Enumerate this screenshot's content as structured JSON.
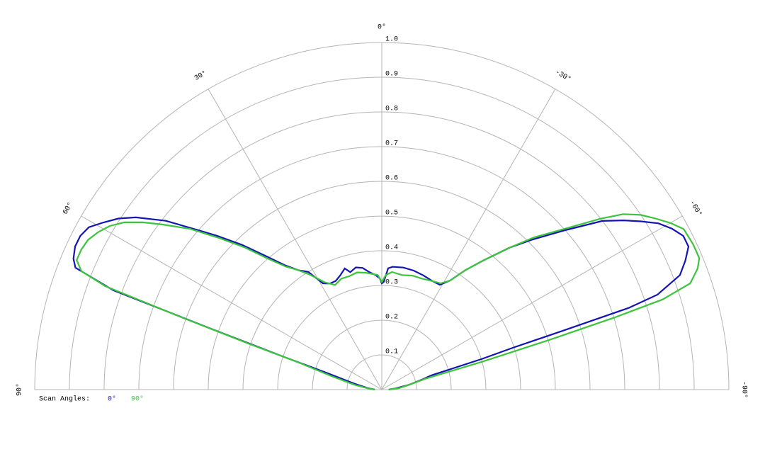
{
  "chart_data": {
    "type": "polar",
    "rlim": [
      0,
      1
    ],
    "rticks": [
      0.1,
      0.2,
      0.3,
      0.4,
      0.5,
      0.6,
      0.7,
      0.8,
      0.9,
      {
        "value": 1,
        "label": "1.0"
      }
    ],
    "thetalim": [
      -90,
      90
    ],
    "thetaticks": [
      {
        "value": 90,
        "label": "90°"
      },
      {
        "value": 60,
        "label": "60°"
      },
      {
        "value": 30,
        "label": "30°"
      },
      {
        "value": 0,
        "label": "0°"
      },
      {
        "value": -30,
        "label": "-30°"
      },
      {
        "value": -60,
        "label": "-60°"
      },
      {
        "value": -90,
        "label": "-90°"
      }
    ],
    "grid": true,
    "legend_title": "Scan Angles:",
    "series": [
      {
        "name": "0°",
        "color": "#1414b4",
        "theta": [
          -90,
          -85,
          -80,
          -76,
          -74,
          -73,
          -72.3,
          -72,
          -71.7,
          -71,
          -69,
          -67,
          -65,
          -63,
          -61,
          -59,
          -57,
          -55,
          -52.6,
          -49,
          -45,
          -42,
          -38,
          -35,
          -32,
          -29,
          -25,
          -20,
          -15,
          -10,
          -5,
          -3,
          -1,
          0,
          1,
          3,
          6,
          9,
          12,
          15,
          17,
          20,
          23,
          26,
          29,
          32,
          35,
          38,
          41,
          44,
          47,
          49,
          52,
          55,
          57,
          59,
          61,
          63,
          65,
          67,
          68.3,
          69.7,
          70.4,
          71.5,
          73,
          78,
          84,
          90
        ],
        "values": [
          0.02,
          0.04,
          0.08,
          0.12,
          0.15,
          0.3,
          0.4,
          0.55,
          0.75,
          0.84,
          0.92,
          0.95,
          0.975,
          0.975,
          0.956,
          0.93,
          0.89,
          0.85,
          0.8,
          0.7,
          0.61,
          0.55,
          0.47,
          0.42,
          0.37,
          0.345,
          0.345,
          0.35,
          0.355,
          0.357,
          0.355,
          0.35,
          0.31,
          0.306,
          0.32,
          0.33,
          0.34,
          0.355,
          0.36,
          0.35,
          0.365,
          0.35,
          0.34,
          0.34,
          0.35,
          0.4,
          0.42,
          0.455,
          0.51,
          0.58,
          0.65,
          0.7,
          0.79,
          0.865,
          0.905,
          0.935,
          0.965,
          0.975,
          0.975,
          0.965,
          0.95,
          0.825,
          0.52,
          0.3,
          0.17,
          0.08,
          0.04,
          0.02
        ]
      },
      {
        "name": "90°",
        "color": "#3cc43c",
        "theta": [
          -90,
          -85,
          -80,
          -76,
          -74.5,
          -73.5,
          -72.8,
          -72.2,
          -71,
          -69,
          -67.5,
          -65,
          -62,
          -60,
          -58,
          -56,
          -54,
          -52,
          -49,
          -45,
          -42,
          -38,
          -35,
          -32,
          -29,
          -25,
          -20,
          -15,
          -10,
          -5,
          -2,
          0,
          2,
          5,
          8,
          12,
          16,
          20,
          24,
          28,
          32,
          35,
          38,
          41,
          44,
          47,
          50,
          53,
          55,
          57,
          59,
          61,
          63,
          65,
          67,
          68.5,
          69.5,
          70.2,
          71,
          72,
          75,
          80,
          85,
          90
        ],
        "values": [
          0.02,
          0.05,
          0.08,
          0.13,
          0.3,
          0.5,
          0.7,
          0.85,
          0.94,
          0.975,
          0.99,
          0.99,
          0.985,
          0.96,
          0.93,
          0.9,
          0.86,
          0.8,
          0.71,
          0.62,
          0.55,
          0.47,
          0.42,
          0.37,
          0.35,
          0.345,
          0.34,
          0.34,
          0.335,
          0.34,
          0.33,
          0.31,
          0.33,
          0.335,
          0.34,
          0.345,
          0.34,
          0.34,
          0.33,
          0.35,
          0.39,
          0.42,
          0.45,
          0.5,
          0.57,
          0.64,
          0.72,
          0.79,
          0.84,
          0.885,
          0.915,
          0.935,
          0.95,
          0.955,
          0.955,
          0.93,
          0.85,
          0.6,
          0.4,
          0.25,
          0.15,
          0.08,
          0.04,
          0.02
        ]
      }
    ]
  }
}
